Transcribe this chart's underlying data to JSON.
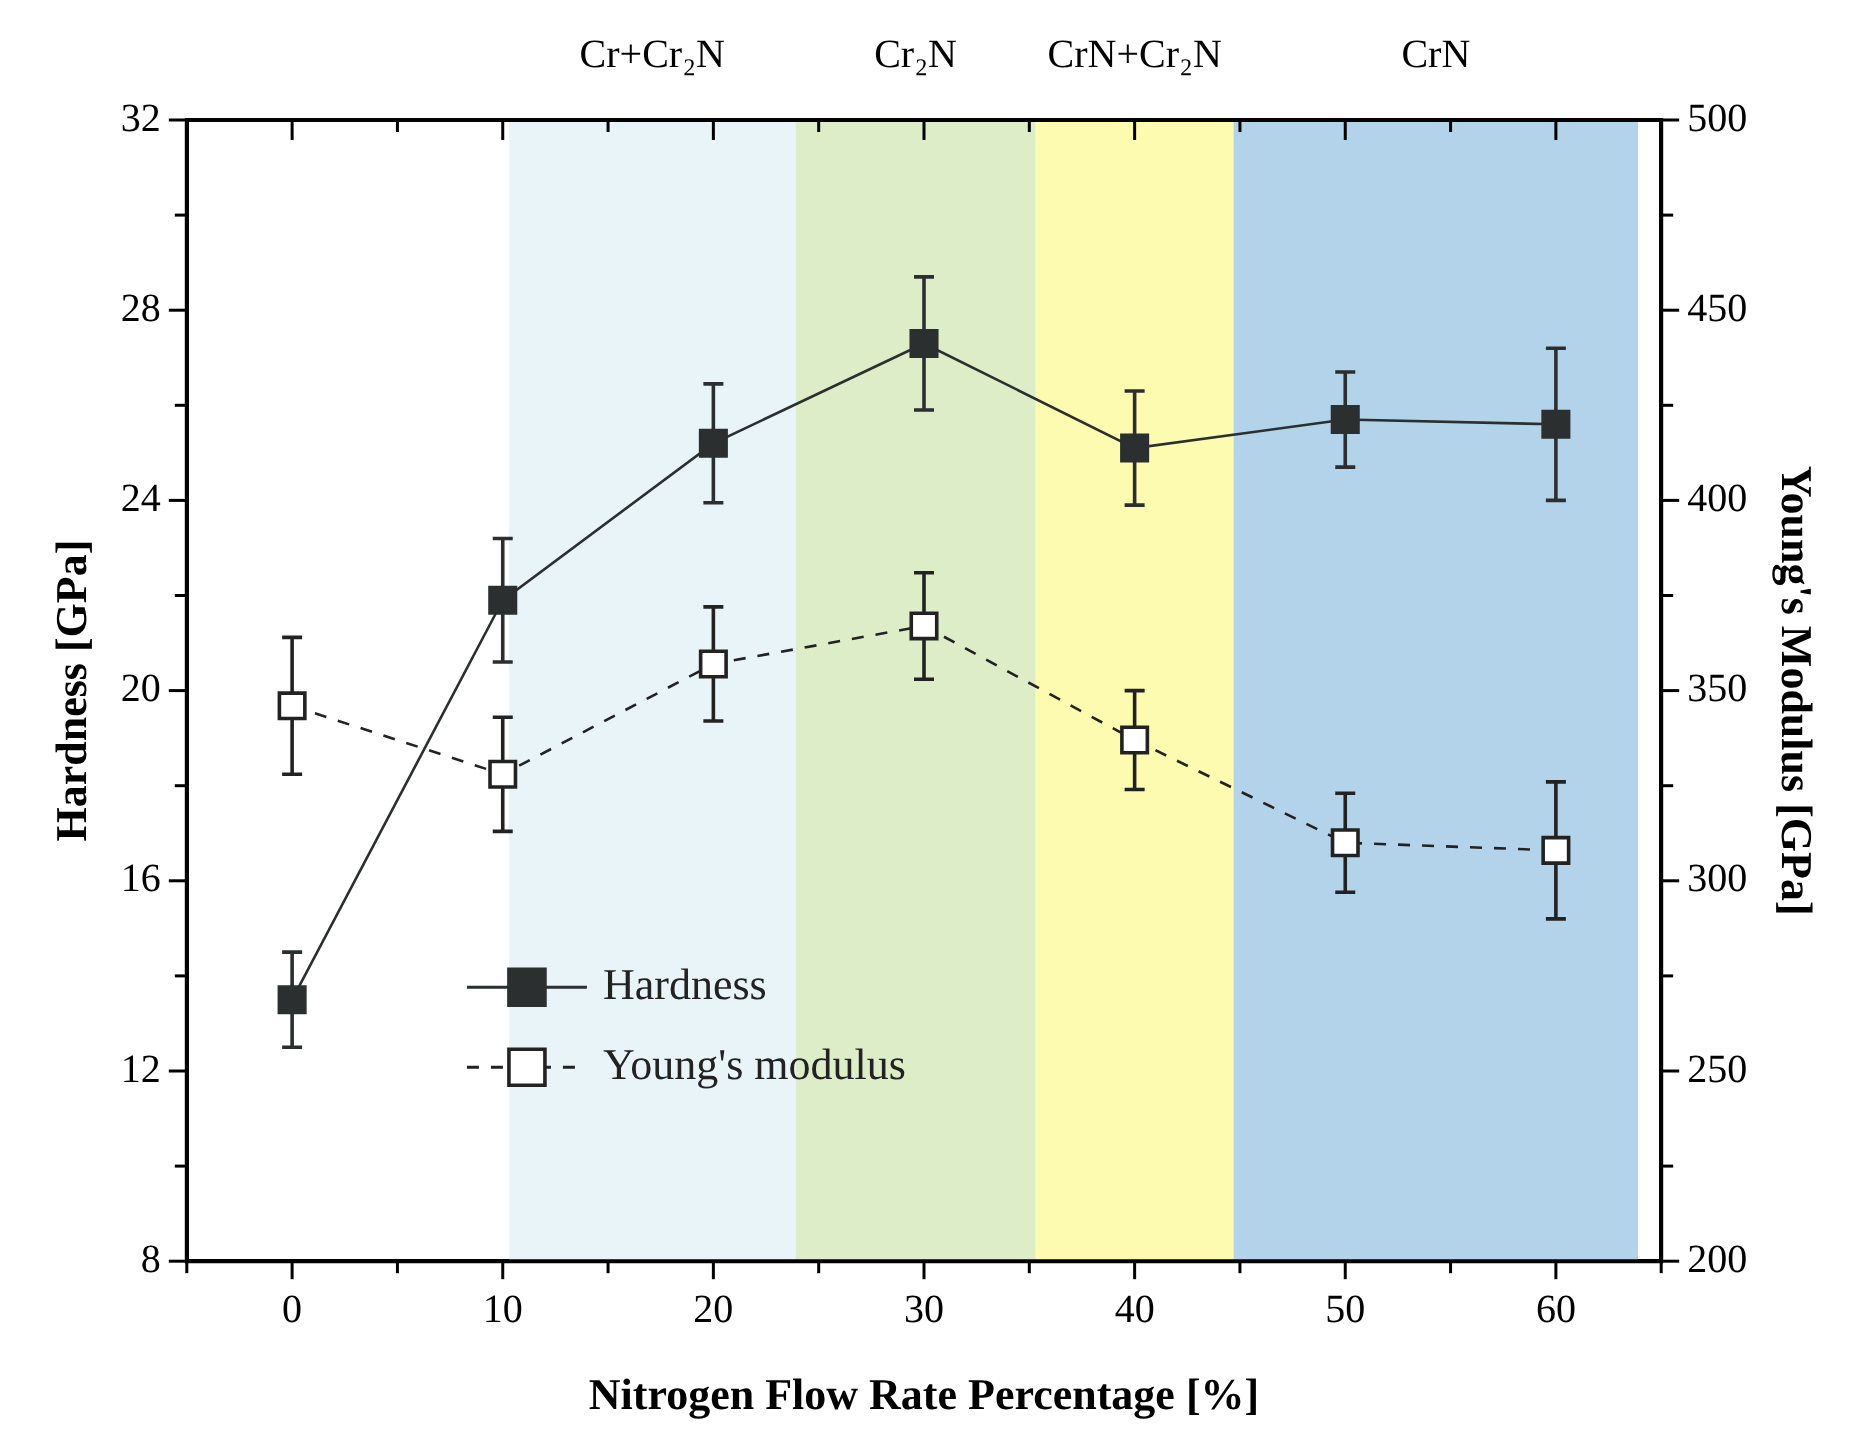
{
  "chart_data": {
    "type": "line",
    "xlabel": "Nitrogen Flow Rate Percentage [%]",
    "ylabel": "Hardness [GPa]",
    "y2label": "Young's Modulus [GPa]",
    "x": [
      0,
      10,
      20,
      30,
      40,
      50,
      60
    ],
    "series": [
      {
        "name": "Hardness",
        "color": "#2b2f2f",
        "values": [
          13.5,
          21.9,
          25.2,
          27.3,
          25.1,
          25.7,
          25.6
        ],
        "errors": [
          1.0,
          1.3,
          1.25,
          1.4,
          1.2,
          1.0,
          1.6
        ],
        "line_style": "solid",
        "marker": "square"
      },
      {
        "name": "Young's modulus",
        "color": "#222222",
        "axis": "y2",
        "values": [
          346,
          328,
          357,
          367,
          337,
          310,
          308
        ],
        "errors": [
          18,
          15,
          15,
          14,
          13,
          13,
          18
        ],
        "line_style": "dashed",
        "marker": "square"
      }
    ],
    "xlim": [
      -5,
      65
    ],
    "xticks": [
      {
        "value": -5,
        "label": null
      },
      0,
      {
        "value": 5,
        "label": null
      },
      10,
      {
        "value": 15,
        "label": null
      },
      20,
      {
        "value": 25,
        "label": null
      },
      30,
      {
        "value": 35,
        "label": null
      },
      40,
      {
        "value": 45,
        "label": null
      },
      50,
      {
        "value": 55,
        "label": null
      },
      60,
      {
        "value": 65,
        "label": null
      }
    ],
    "ylim": [
      8,
      32
    ],
    "yticks": [
      8,
      {
        "value": 10,
        "label": null
      },
      12,
      {
        "value": 14,
        "label": null
      },
      16,
      {
        "value": 18,
        "label": null
      },
      20,
      {
        "value": 22,
        "label": null
      },
      24,
      {
        "value": 26,
        "label": null
      },
      28,
      {
        "value": 30,
        "label": null
      },
      32
    ],
    "y2lim": [
      200,
      500
    ],
    "y2ticks": [
      200,
      {
        "value": 225,
        "label": null
      },
      250,
      {
        "value": 275,
        "label": null
      },
      300,
      {
        "value": 325,
        "label": null
      },
      350,
      {
        "value": 375,
        "label": null
      },
      400,
      {
        "value": 425,
        "label": null
      },
      450,
      {
        "value": 475,
        "label": null
      },
      500
    ],
    "bands": [
      {
        "axis": "x",
        "from": 10.3,
        "to": 23.9,
        "label": "Cr+Cr₂N",
        "color": "#e8f4f8"
      },
      {
        "axis": "x",
        "from": 23.9,
        "to": 35.3,
        "label": "Cr₂N",
        "color": "#dcedc8"
      },
      {
        "axis": "x",
        "from": 35.3,
        "to": 44.7,
        "label": "CrN+Cr₂N",
        "color": "#fdfbb0"
      },
      {
        "axis": "x",
        "from": 44.7,
        "to": 63.9,
        "label": "CrN",
        "color": "#b3d3ea"
      }
    ],
    "legend": "bottom left",
    "grid": false
  }
}
